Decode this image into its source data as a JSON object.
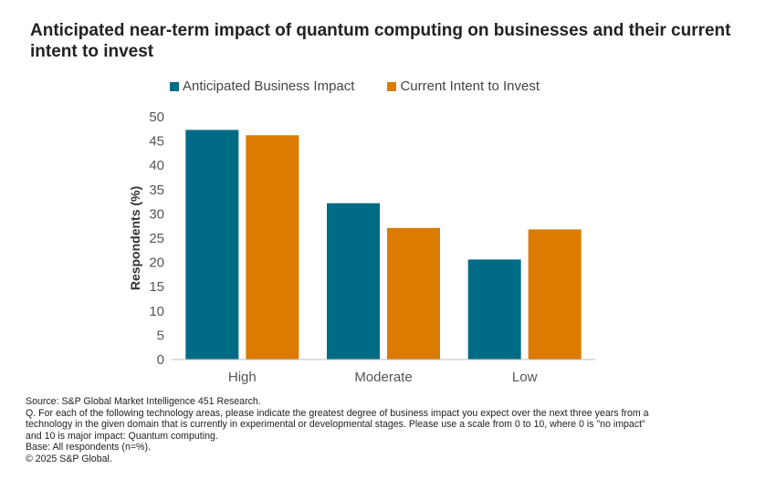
{
  "title": "Anticipated near-term impact of quantum computing on businesses and their current intent to invest",
  "chart_data": {
    "type": "bar",
    "title": "Anticipated near-term impact of quantum computing on businesses and their current intent to invest",
    "categories": [
      "High",
      "Moderate",
      "Low"
    ],
    "series": [
      {
        "name": "Anticipated Business Impact",
        "color": "#006B85",
        "values": [
          47.3,
          32.2,
          20.6
        ]
      },
      {
        "name": "Current Intent to Invest",
        "color": "#DB7B00",
        "values": [
          46.2,
          27.1,
          26.8
        ]
      }
    ],
    "xlabel": "",
    "ylabel": "Respondents (%)",
    "ylim": [
      0,
      50
    ],
    "yticks": [
      0,
      5,
      10,
      15,
      20,
      25,
      30,
      35,
      40,
      45,
      50
    ],
    "grid": false,
    "legend": "top"
  },
  "footer": {
    "source": "Source: S&P Global Market Intelligence 451 Research.",
    "question_lines": [
      "Q. For each of the following technology areas, please indicate the greatest degree of business impact you expect over the next three years from a",
      "technology in the given domain that is currently in experimental or developmental stages. Please use a scale from 0 to 10, where 0 is \"no impact\"",
      "and 10 is major impact: Quantum computing."
    ],
    "base": "Base: All respondents (n=%).",
    "copyright": "© 2025 S&P Global."
  }
}
